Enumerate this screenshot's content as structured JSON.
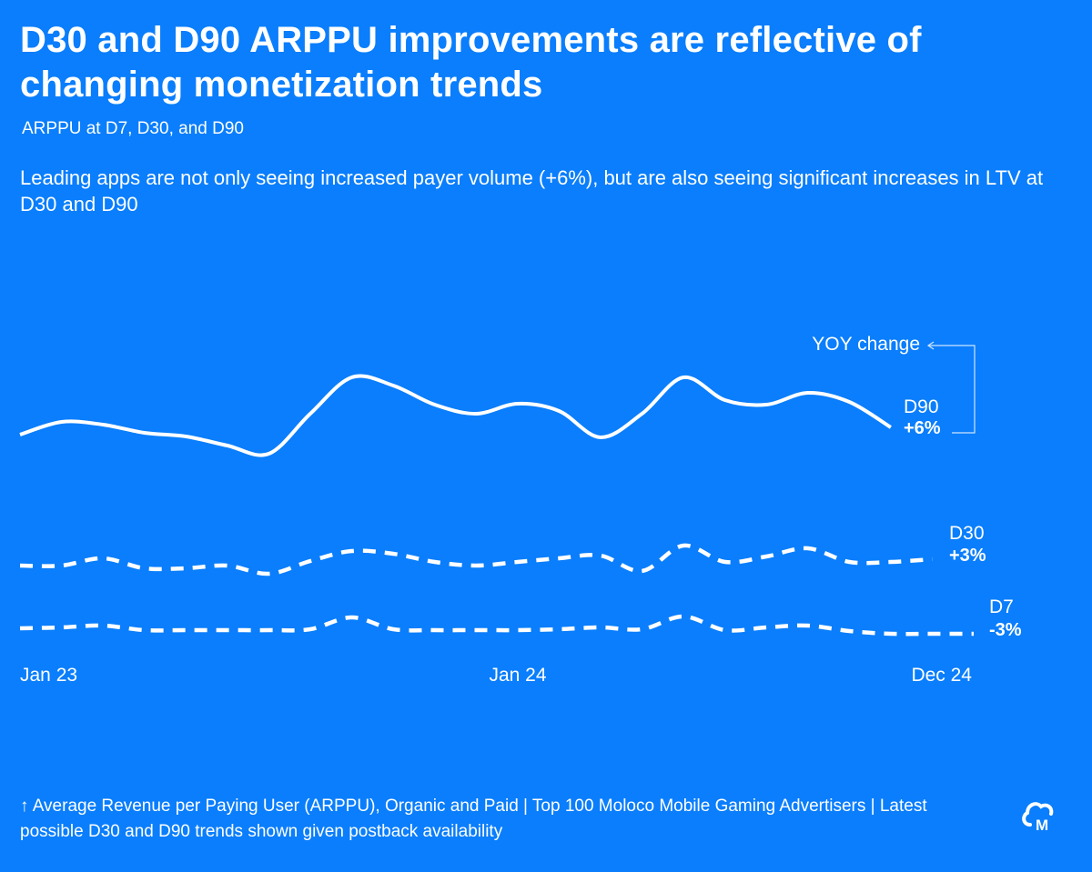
{
  "header": {
    "title": "D30 and D90 ARPPU improvements are reflective of changing monetization trends",
    "subtitle": "ARPPU at D7, D30, and D90",
    "description": "Leading apps are not only seeing increased payer volume (+6%), but are also seeing significant increases in LTV at D30 and D90"
  },
  "chart_data": {
    "type": "line",
    "title": "ARPPU at D7, D30, and D90",
    "xlabel": "",
    "ylabel": "",
    "x_start": "Jan 23",
    "x_end": "Dec 24",
    "x_tick_labels": [
      "Jan 23",
      "Jan 24",
      "Dec 24"
    ],
    "x_tick_index": [
      0,
      12,
      23
    ],
    "grid": false,
    "value_note": "relative index, Jan 23 D90 = 100 (no y-axis shown)",
    "series": [
      {
        "name": "D90",
        "change": "+6%",
        "style": "solid",
        "values": [
          100,
          102.8,
          102.2,
          100.4,
          99.6,
          97.6,
          95.8,
          104.6,
          112.6,
          110.8,
          106.6,
          104.6,
          106.8,
          105.2,
          99.4,
          104.6,
          112.6,
          107.6,
          106.6,
          109.2,
          107.2,
          101.6
        ]
      },
      {
        "name": "D30",
        "change": "+3%",
        "style": "dashed",
        "values": [
          71.2,
          71.2,
          72.8,
          70.6,
          70.6,
          71.2,
          69.4,
          72.2,
          74.4,
          73.8,
          72.0,
          71.2,
          72.0,
          72.8,
          73.4,
          70.0,
          75.6,
          72.0,
          73.2,
          75.0,
          72.0,
          72.0,
          72.6
        ]
      },
      {
        "name": "D7",
        "change": "-3%",
        "style": "dashed",
        "values": [
          57.4,
          57.6,
          58.0,
          57.0,
          57.0,
          57.0,
          57.0,
          57.2,
          59.8,
          57.2,
          57.0,
          57.0,
          57.0,
          57.2,
          57.6,
          57.2,
          60.0,
          57.0,
          57.6,
          58.0,
          56.8,
          56.2,
          56.2,
          56.2
        ]
      }
    ],
    "annotation": "YOY change"
  },
  "footer": {
    "note": "↑ Average Revenue per Paying User (ARPPU), Organic and Paid | Top 100 Moloco Mobile Gaming Advertisers | Latest possible D30 and D90 trends shown given postback availability",
    "logo_text": "M"
  }
}
